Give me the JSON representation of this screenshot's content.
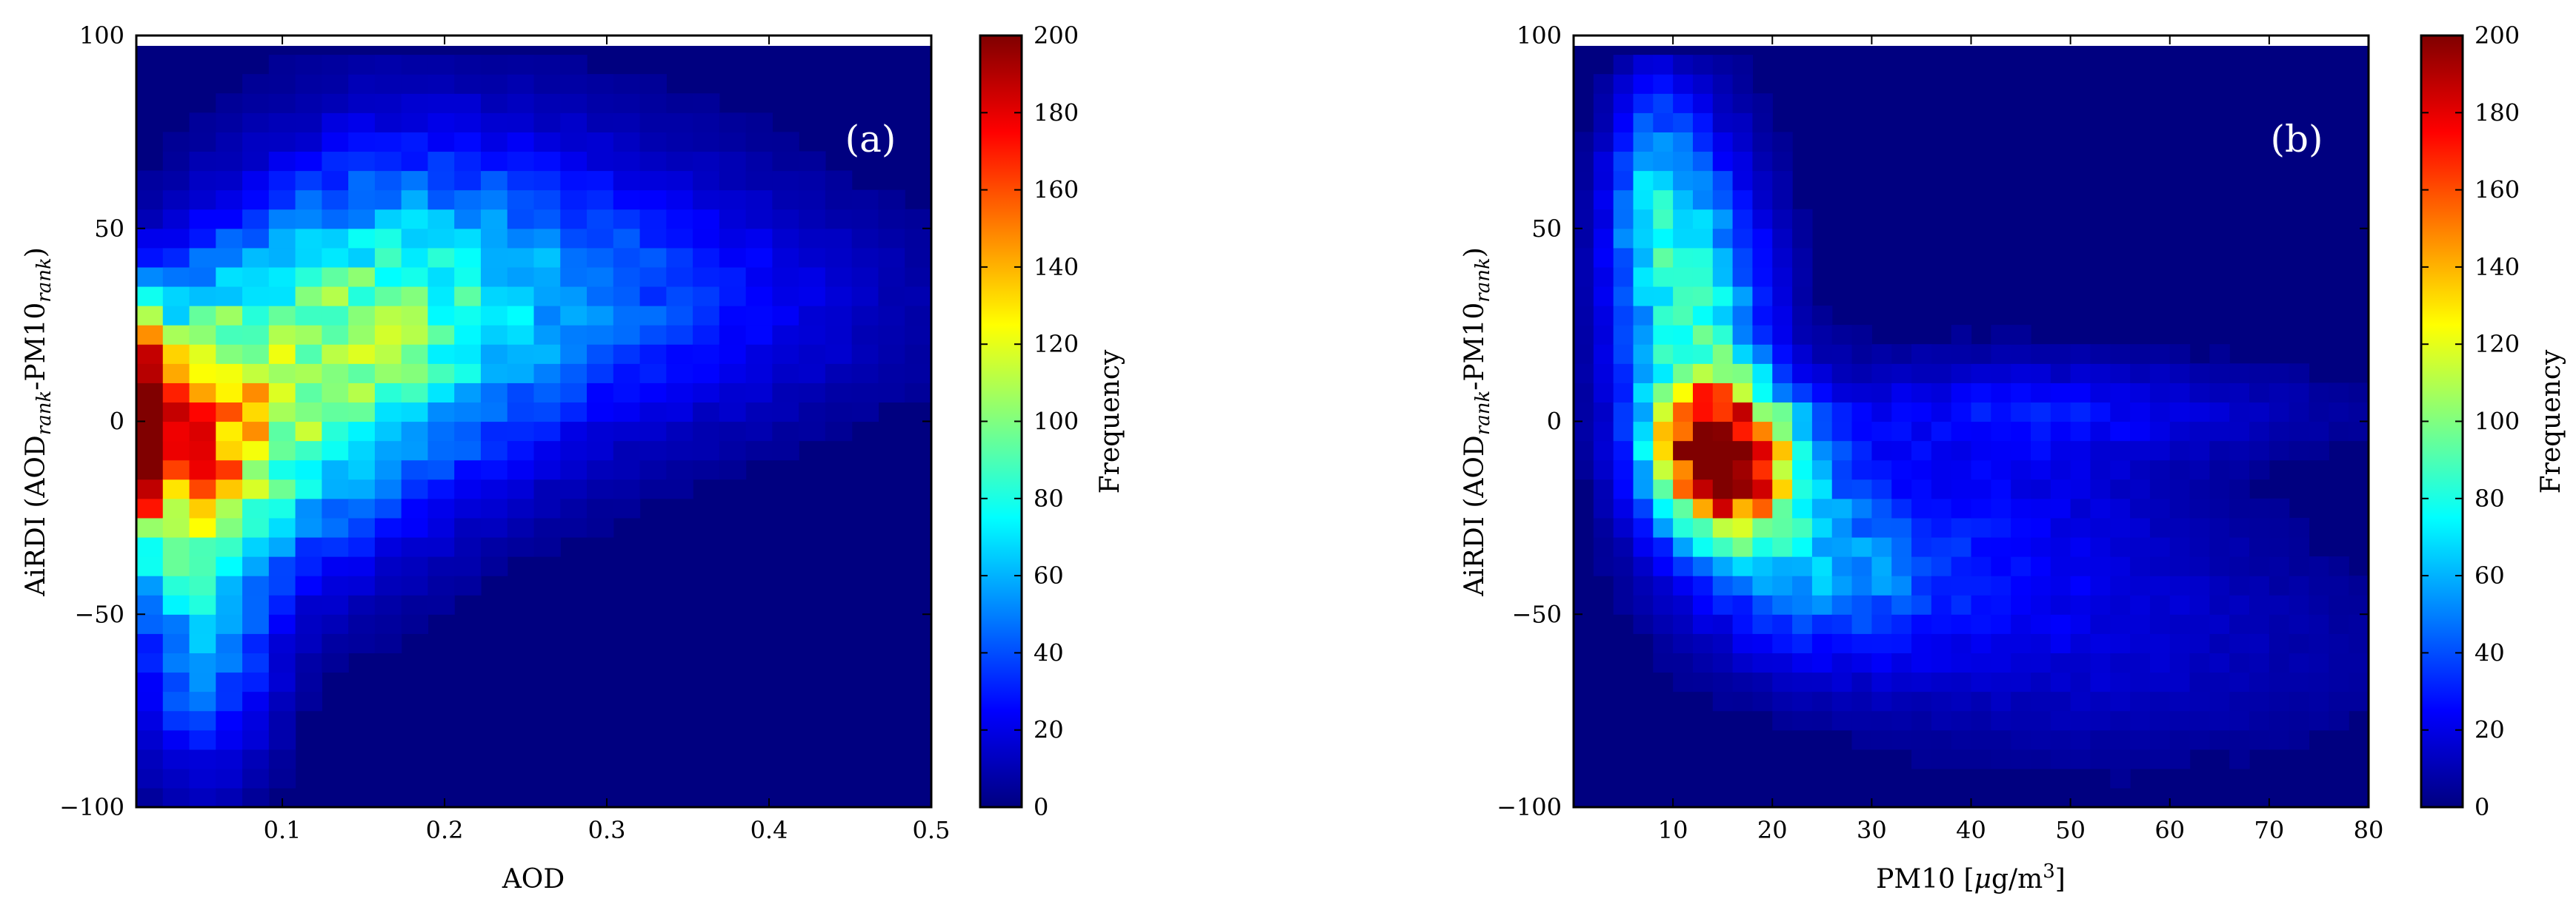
{
  "colormap": [
    "#000080",
    "#0000ff",
    "#0080ff",
    "#00ffff",
    "#80ff80",
    "#ffff00",
    "#ff8000",
    "#ff0000",
    "#800000"
  ],
  "chart_data": [
    {
      "type": "heatmap",
      "panel_label": "(a)",
      "xlabel": "AOD",
      "ylabel_parts": {
        "pre": "AiRDI (AOD",
        "sub1": "rank",
        "mid": "-PM10",
        "sub2": "rank",
        "post": ")"
      },
      "xlim": [
        0.01,
        0.5
      ],
      "ylim": [
        -100,
        100
      ],
      "x_ticks": [
        0.1,
        0.2,
        0.3,
        0.4,
        0.5
      ],
      "x_tick_labels": [
        "0.1",
        "0.2",
        "0.3",
        "0.4",
        "0.5"
      ],
      "y_ticks": [
        -100,
        -50,
        0,
        50,
        100
      ],
      "y_tick_labels": [
        "−100",
        "−50",
        "0",
        "50",
        "100"
      ],
      "colorbar": {
        "label": "Frequency",
        "min": 0,
        "max": 200,
        "ticks": [
          0,
          20,
          40,
          60,
          80,
          100,
          120,
          140,
          160,
          180,
          200
        ]
      },
      "bins_x": 30,
      "bins_y": 40,
      "density_model": "AOD-conditioned gaussian ridge estimated from figure",
      "blobs": [
        {
          "cx": 0.015,
          "cy": 0,
          "sx": 0.01,
          "sy": 18,
          "amp": 165
        },
        {
          "cx": 0.045,
          "cy": -6,
          "sx": 0.03,
          "sy": 24,
          "amp": 115
        },
        {
          "cx": 0.1,
          "cy": 5,
          "sx": 0.05,
          "sy": 28,
          "amp": 70
        },
        {
          "cx": 0.17,
          "cy": 25,
          "sx": 0.06,
          "sy": 30,
          "amp": 55
        },
        {
          "cx": 0.25,
          "cy": 35,
          "sx": 0.09,
          "sy": 28,
          "amp": 32
        },
        {
          "cx": 0.36,
          "cy": 30,
          "sx": 0.1,
          "sy": 20,
          "amp": 18
        },
        {
          "cx": 0.05,
          "cy": -60,
          "sx": 0.03,
          "sy": 22,
          "amp": 45
        }
      ]
    },
    {
      "type": "heatmap",
      "panel_label": "(b)",
      "xlabel_parts": {
        "pre": "PM10 [",
        "mu": "μ",
        "mid": "g/m",
        "sup": "3",
        "post": "]"
      },
      "ylabel_parts": {
        "pre": "AiRDI (AOD",
        "sub1": "rank",
        "mid": "-PM10",
        "sub2": "rank",
        "post": ")"
      },
      "xlim": [
        0,
        80
      ],
      "ylim": [
        -100,
        100
      ],
      "x_ticks": [
        10,
        20,
        30,
        40,
        50,
        60,
        70,
        80
      ],
      "x_tick_labels": [
        "10",
        "20",
        "30",
        "40",
        "50",
        "60",
        "70",
        "80"
      ],
      "y_ticks": [
        -100,
        -50,
        0,
        50,
        100
      ],
      "y_tick_labels": [
        "−100",
        "−50",
        "0",
        "50",
        "100"
      ],
      "colorbar": {
        "label": "Frequency",
        "min": 0,
        "max": 200,
        "ticks": [
          0,
          20,
          40,
          60,
          80,
          100,
          120,
          140,
          160,
          180,
          200
        ]
      },
      "bins_x": 40,
      "bins_y": 40,
      "density_model": "PM10-conditioned gaussian ridge estimated from figure",
      "blobs": [
        {
          "cx": 14,
          "cy": -8,
          "sx": 4,
          "sy": 12,
          "amp": 150
        },
        {
          "cx": 18,
          "cy": -14,
          "sx": 5,
          "sy": 14,
          "amp": 90
        },
        {
          "cx": 12,
          "cy": 25,
          "sx": 5,
          "sy": 30,
          "amp": 80
        },
        {
          "cx": 8,
          "cy": 60,
          "sx": 3,
          "sy": 20,
          "amp": 45
        },
        {
          "cx": 25,
          "cy": -40,
          "sx": 8,
          "sy": 15,
          "amp": 40
        },
        {
          "cx": 40,
          "cy": -25,
          "sx": 15,
          "sy": 25,
          "amp": 22
        },
        {
          "cx": 50,
          "cy": 3,
          "sx": 18,
          "sy": 8,
          "amp": 18
        },
        {
          "cx": 55,
          "cy": -60,
          "sx": 20,
          "sy": 20,
          "amp": 12
        }
      ]
    }
  ]
}
